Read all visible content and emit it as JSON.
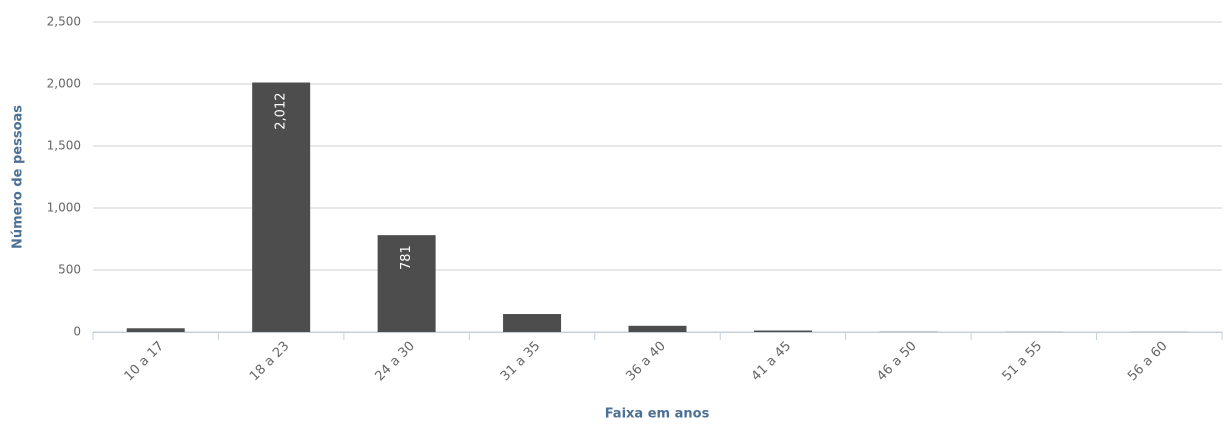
{
  "chart_data": {
    "type": "bar",
    "x_label": "Faixa em anos",
    "y_label": "Número de pessoas",
    "categories": [
      "10 a 17",
      "18 a 23",
      "24 a 30",
      "31 a 35",
      "36 a 40",
      "41 a 45",
      "46 a 50",
      "51 a 55",
      "56 a 60"
    ],
    "values": [
      30,
      2012,
      781,
      145,
      50,
      12,
      2,
      1,
      1
    ],
    "value_labels": [
      null,
      "2,012",
      "781",
      null,
      null,
      null,
      null,
      null,
      null
    ],
    "color": "#4d4d4d",
    "ylim": [
      0,
      2500
    ],
    "yticks": [
      0,
      500,
      {
        "value": 1000,
        "label": "1,000"
      },
      {
        "value": 1500,
        "label": "1,500"
      },
      {
        "value": 2000,
        "label": "2,000"
      },
      {
        "value": 2500,
        "label": "2,500"
      }
    ],
    "grid": true
  }
}
